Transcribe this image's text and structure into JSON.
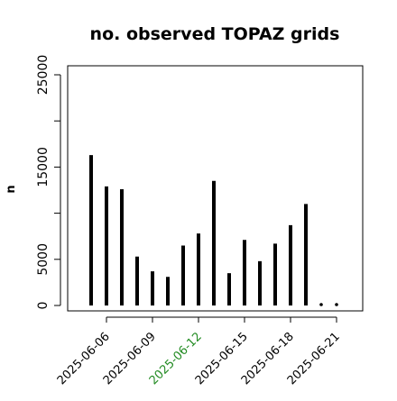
{
  "chart_data": {
    "type": "bar",
    "title": "no. observed TOPAZ grids",
    "xlabel": "",
    "ylabel": "n",
    "ylim": [
      0,
      26000
    ],
    "yticks": [
      0,
      5000,
      10000,
      15000,
      20000,
      25000
    ],
    "ytick_labels": [
      "0",
      "5000",
      "",
      "15000",
      "",
      "25000"
    ],
    "x": [
      "2025-06-05",
      "2025-06-06",
      "2025-06-07",
      "2025-06-08",
      "2025-06-09",
      "2025-06-10",
      "2025-06-11",
      "2025-06-12",
      "2025-06-13",
      "2025-06-14",
      "2025-06-15",
      "2025-06-16",
      "2025-06-17",
      "2025-06-18",
      "2025-06-19",
      "2025-06-20",
      "2025-06-21"
    ],
    "values": [
      16300,
      12900,
      12600,
      5300,
      3700,
      3100,
      6500,
      7800,
      13500,
      3500,
      7100,
      4800,
      6700,
      8700,
      11000,
      0,
      0
    ],
    "xticks": [
      "2025-06-06",
      "2025-06-09",
      "2025-06-12",
      "2025-06-15",
      "2025-06-18",
      "2025-06-21"
    ],
    "xtick_colors": [
      "#000000",
      "#000000",
      "#228B22",
      "#000000",
      "#000000",
      "#000000"
    ],
    "bar_color": "#000000",
    "grid": false
  }
}
